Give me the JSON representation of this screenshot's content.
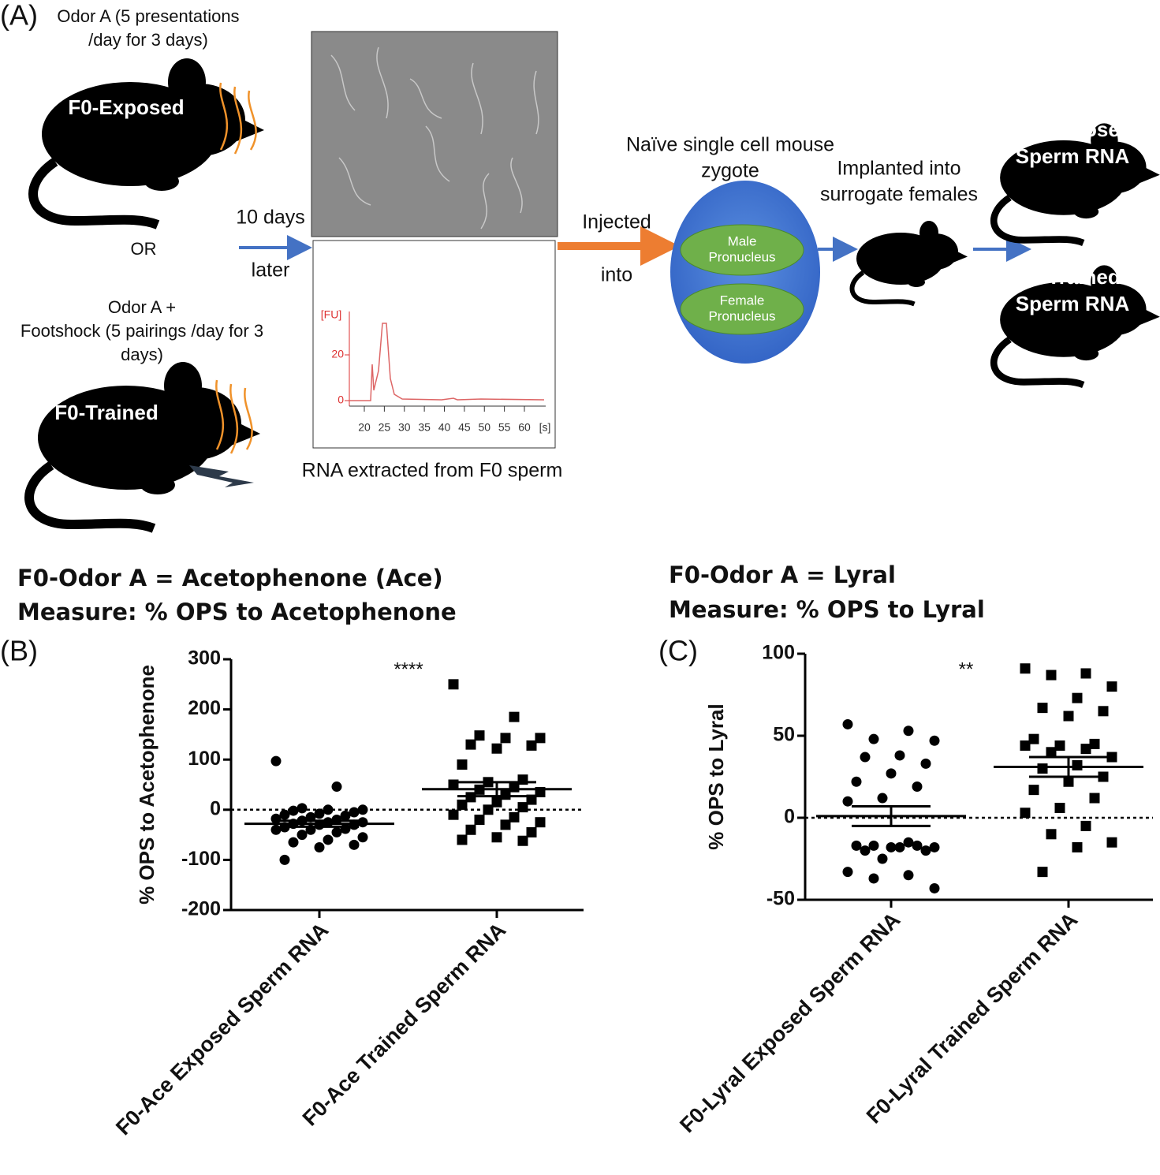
{
  "diagram": {
    "panel_label": "(A)",
    "exposed_protocol": [
      "Odor A (5 presentations",
      "/day for 3 days)"
    ],
    "exposed_label": "F0-Exposed",
    "or": "OR",
    "trained_protocol": [
      "Odor A +",
      "Footshock (5 pairings /day for 3",
      "days)"
    ],
    "trained_label": "F0-Trained",
    "delay": [
      "10 days",
      "later"
    ],
    "trace": {
      "y_unit": "[FU]",
      "yticks": [
        20,
        0
      ],
      "xticks": [
        20,
        25,
        30,
        35,
        40,
        45,
        50,
        55,
        60
      ],
      "x_unit": "[s]"
    },
    "rna_caption": "RNA extracted from F0 sperm",
    "inject": [
      "Injected",
      "into"
    ],
    "zygote_label": [
      "Naïve single cell mouse",
      "zygote"
    ],
    "male": [
      "Male",
      "Pronucleus"
    ],
    "female": [
      "Female",
      "Pronucleus"
    ],
    "implant": [
      "Implanted into",
      "surrogate females"
    ],
    "offspring": [
      [
        "F0-Exposed",
        "Sperm RNA"
      ],
      [
        "F0-Trained",
        "Sperm RNA"
      ]
    ]
  },
  "chart_data": [
    {
      "type": "dot",
      "panel_label": "(B)",
      "title": [
        "F0-Odor A = Acetophenone (Ace)",
        "Measure: % OPS to Acetophenone"
      ],
      "ylabel": "% OPS to Acetophenone",
      "annotation": "****",
      "categories": [
        "F0-Ace Exposed Sperm RNA",
        "F0-Ace Trained Sperm RNA"
      ],
      "groups": [
        {
          "marker": "circle",
          "values": [
            97,
            46,
            3,
            0,
            0,
            -2,
            -5,
            -8,
            -10,
            -12,
            -15,
            -18,
            -20,
            -22,
            -25,
            -25,
            -28,
            -30,
            -30,
            -35,
            -38,
            -40,
            -40,
            -45,
            -50,
            -55,
            -60,
            -65,
            -70,
            -75,
            -100
          ],
          "mean": -28,
          "sem": 6
        },
        {
          "marker": "square",
          "values": [
            250,
            185,
            148,
            143,
            143,
            130,
            128,
            122,
            90,
            60,
            55,
            50,
            45,
            40,
            35,
            30,
            25,
            20,
            15,
            10,
            5,
            0,
            -10,
            -15,
            -20,
            -25,
            -30,
            -40,
            -45,
            -55,
            -60,
            -62
          ],
          "mean": 41,
          "sem": 14
        }
      ],
      "color": "#000000",
      "reference_line": 0,
      "ylim": [
        -200,
        300
      ],
      "yticks": [
        -200,
        -100,
        0,
        100,
        200,
        300
      ]
    },
    {
      "type": "dot",
      "panel_label": "(C)",
      "title": [
        "F0-Odor A = Lyral",
        "Measure: % OPS to Lyral"
      ],
      "ylabel": "% OPS to Lyral",
      "annotation": "**",
      "categories": [
        "F0-Lyral Exposed Sperm RNA",
        "F0-Lyral Trained Sperm RNA"
      ],
      "groups": [
        {
          "marker": "circle",
          "values": [
            57,
            53,
            48,
            47,
            38,
            37,
            33,
            27,
            22,
            19,
            12,
            10,
            -15,
            -17,
            -18,
            -18,
            -20,
            -20,
            -18,
            -17,
            -17,
            -25,
            -33,
            -35,
            -37,
            -43
          ],
          "mean": 1,
          "sem": 6
        },
        {
          "marker": "square",
          "values": [
            91,
            88,
            87,
            80,
            73,
            67,
            65,
            62,
            48,
            45,
            44,
            44,
            42,
            40,
            37,
            32,
            30,
            25,
            22,
            17,
            12,
            6,
            3,
            -5,
            -10,
            -15,
            -18,
            -33
          ],
          "mean": 31,
          "sem": 6
        }
      ],
      "color": "#000000",
      "reference_line": 0,
      "ylim": [
        -50,
        100
      ],
      "yticks": [
        -50,
        0,
        50,
        100
      ]
    }
  ]
}
